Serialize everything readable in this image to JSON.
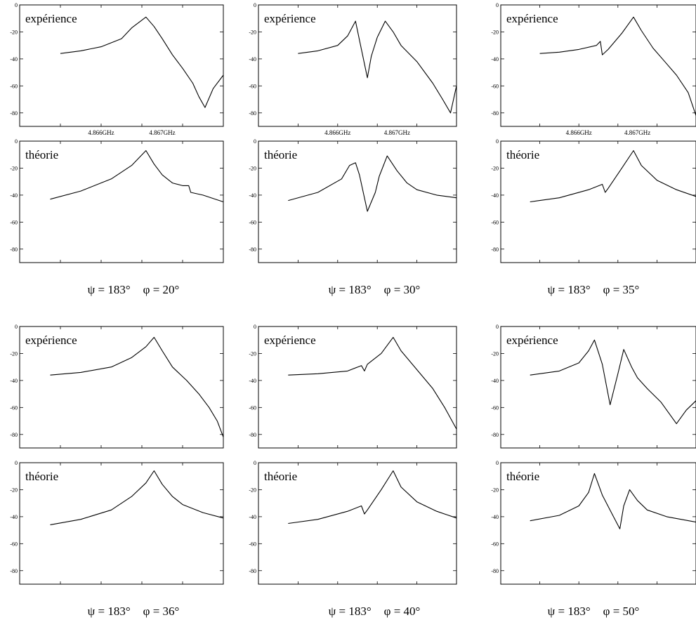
{
  "chart_data": [
    {
      "type": "line",
      "label": "expérience",
      "yticks": [
        0,
        -20,
        -40,
        -60,
        -80
      ],
      "ylim": [
        -90,
        0
      ],
      "xticks": [
        "4.866GHz",
        "4.867GHz"
      ],
      "xrange": [
        0,
        1
      ],
      "x": [
        0.2,
        0.3,
        0.4,
        0.5,
        0.55,
        0.62,
        0.66,
        0.7,
        0.75,
        0.8,
        0.85,
        0.88,
        0.91,
        0.95,
        1.0
      ],
      "y": [
        -36,
        -34,
        -31,
        -25,
        -17,
        -9,
        -16,
        -25,
        -37,
        -47,
        -58,
        -68,
        -76,
        -62,
        -52
      ]
    },
    {
      "type": "line",
      "label": "expérience",
      "yticks": [
        0,
        -20,
        -40,
        -60,
        -80
      ],
      "ylim": [
        -90,
        0
      ],
      "xticks": [
        "4.866GHz",
        "4.867GHz"
      ],
      "xrange": [
        0,
        1
      ],
      "x": [
        0.2,
        0.3,
        0.4,
        0.45,
        0.49,
        0.51,
        0.55,
        0.57,
        0.6,
        0.64,
        0.68,
        0.72,
        0.8,
        0.88,
        0.93,
        0.97,
        1.0
      ],
      "y": [
        -36,
        -34,
        -30,
        -23,
        -12,
        -26,
        -54,
        -38,
        -24,
        -12,
        -20,
        -30,
        -42,
        -58,
        -70,
        -80,
        -60
      ]
    },
    {
      "type": "line",
      "label": "expérience",
      "yticks": [
        0,
        -20,
        -40,
        -60,
        -80
      ],
      "ylim": [
        -90,
        0
      ],
      "xticks": [
        "4.866GHz",
        "4.867GHz"
      ],
      "xrange": [
        0,
        1
      ],
      "x": [
        0.2,
        0.3,
        0.4,
        0.49,
        0.51,
        0.52,
        0.55,
        0.62,
        0.68,
        0.72,
        0.78,
        0.84,
        0.9,
        0.96,
        1.0
      ],
      "y": [
        -36,
        -35,
        -33,
        -30,
        -27,
        -37,
        -33,
        -21,
        -9,
        -19,
        -32,
        -42,
        -52,
        -65,
        -82
      ]
    },
    {
      "type": "line",
      "label": "théorie",
      "yticks": [
        0,
        -20,
        -40,
        -60,
        -80
      ],
      "ylim": [
        -90,
        0
      ],
      "x": [
        0.15,
        0.3,
        0.45,
        0.55,
        0.62,
        0.66,
        0.7,
        0.75,
        0.8,
        0.83,
        0.84,
        0.9,
        1.0
      ],
      "y": [
        -43,
        -37,
        -28,
        -18,
        -7,
        -17,
        -25,
        -31,
        -33,
        -33,
        -38,
        -40,
        -45
      ]
    },
    {
      "type": "line",
      "label": "théorie",
      "yticks": [
        0,
        -20,
        -40,
        -60,
        -80
      ],
      "ylim": [
        -90,
        0
      ],
      "x": [
        0.15,
        0.3,
        0.42,
        0.46,
        0.49,
        0.51,
        0.55,
        0.59,
        0.61,
        0.65,
        0.7,
        0.75,
        0.8,
        0.9,
        1.0
      ],
      "y": [
        -44,
        -38,
        -28,
        -18,
        -16,
        -25,
        -52,
        -38,
        -26,
        -11,
        -22,
        -31,
        -36,
        -40,
        -42
      ]
    },
    {
      "type": "line",
      "label": "théorie",
      "yticks": [
        0,
        -20,
        -40,
        -60,
        -80
      ],
      "ylim": [
        -90,
        0
      ],
      "x": [
        0.15,
        0.3,
        0.45,
        0.52,
        0.535,
        0.55,
        0.62,
        0.68,
        0.72,
        0.8,
        0.9,
        1.0
      ],
      "y": [
        -45,
        -42,
        -36,
        -32,
        -38,
        -35,
        -20,
        -7,
        -18,
        -29,
        -36,
        -41
      ]
    },
    {
      "type": "line",
      "label": "expérience",
      "yticks": [
        0,
        -20,
        -40,
        -60,
        -80
      ],
      "ylim": [
        -90,
        0
      ],
      "xrange": [
        0,
        1
      ],
      "x": [
        0.15,
        0.3,
        0.45,
        0.55,
        0.62,
        0.66,
        0.7,
        0.75,
        0.82,
        0.88,
        0.93,
        0.97,
        1.0
      ],
      "y": [
        -36,
        -34,
        -30,
        -23,
        -15,
        -8,
        -18,
        -30,
        -40,
        -50,
        -60,
        -70,
        -82
      ]
    },
    {
      "type": "line",
      "label": "expérience",
      "yticks": [
        0,
        -20,
        -40,
        -60,
        -80
      ],
      "ylim": [
        -90,
        0
      ],
      "xrange": [
        0,
        1
      ],
      "x": [
        0.15,
        0.3,
        0.45,
        0.52,
        0.535,
        0.55,
        0.62,
        0.68,
        0.72,
        0.8,
        0.88,
        0.94,
        1.0
      ],
      "y": [
        -36,
        -35,
        -33,
        -29,
        -33,
        -28,
        -20,
        -8,
        -18,
        -32,
        -46,
        -60,
        -76
      ]
    },
    {
      "type": "line",
      "label": "expérience",
      "yticks": [
        0,
        -20,
        -40,
        -60,
        -80
      ],
      "ylim": [
        -90,
        0
      ],
      "xrange": [
        0,
        1
      ],
      "x": [
        0.15,
        0.3,
        0.4,
        0.45,
        0.48,
        0.52,
        0.56,
        0.6,
        0.63,
        0.67,
        0.7,
        0.75,
        0.82,
        0.9,
        0.95,
        1.0
      ],
      "y": [
        -36,
        -33,
        -27,
        -18,
        -10,
        -28,
        -58,
        -35,
        -17,
        -30,
        -38,
        -46,
        -56,
        -72,
        -62,
        -55
      ]
    },
    {
      "type": "line",
      "label": "théorie",
      "yticks": [
        0,
        -20,
        -40,
        -60,
        -80
      ],
      "ylim": [
        -90,
        0
      ],
      "x": [
        0.15,
        0.3,
        0.45,
        0.55,
        0.62,
        0.66,
        0.7,
        0.75,
        0.8,
        0.9,
        1.0
      ],
      "y": [
        -46,
        -42,
        -35,
        -25,
        -15,
        -6,
        -16,
        -25,
        -31,
        -37,
        -41
      ]
    },
    {
      "type": "line",
      "label": "théorie",
      "yticks": [
        0,
        -20,
        -40,
        -60,
        -80
      ],
      "ylim": [
        -90,
        0
      ],
      "x": [
        0.15,
        0.3,
        0.45,
        0.52,
        0.535,
        0.55,
        0.62,
        0.68,
        0.72,
        0.8,
        0.9,
        1.0
      ],
      "y": [
        -45,
        -42,
        -36,
        -32,
        -38,
        -35,
        -20,
        -6,
        -18,
        -29,
        -36,
        -41
      ]
    },
    {
      "type": "line",
      "label": "théorie",
      "yticks": [
        0,
        -20,
        -40,
        -60,
        -80
      ],
      "ylim": [
        -90,
        0
      ],
      "x": [
        0.15,
        0.3,
        0.4,
        0.45,
        0.48,
        0.52,
        0.57,
        0.61,
        0.63,
        0.66,
        0.7,
        0.75,
        0.85,
        1.0
      ],
      "y": [
        -43,
        -39,
        -32,
        -22,
        -8,
        -24,
        -38,
        -49,
        -32,
        -20,
        -28,
        -35,
        -40,
        -44
      ]
    }
  ],
  "captions": [
    {
      "psi": "ψ = 183°",
      "phi": "φ = 20°"
    },
    {
      "psi": "ψ = 183°",
      "phi": "φ = 30°"
    },
    {
      "psi": "ψ = 183°",
      "phi": "φ = 35°"
    },
    {
      "psi": "ψ = 183°",
      "phi": "φ = 36°"
    },
    {
      "psi": "ψ = 183°",
      "phi": "φ = 40°"
    },
    {
      "psi": "ψ = 183°",
      "phi": "φ = 50°"
    }
  ]
}
